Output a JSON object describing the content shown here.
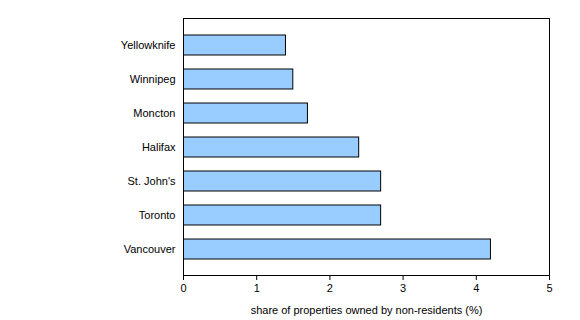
{
  "chart_data": {
    "type": "bar",
    "orientation": "horizontal",
    "categories": [
      "Yellowknife",
      "Winnipeg",
      "Moncton",
      "Halifax",
      "St. John's",
      "Toronto",
      "Vancouver"
    ],
    "values": [
      1.4,
      1.5,
      1.7,
      2.4,
      2.7,
      2.7,
      4.2
    ],
    "color": "#99ccff",
    "x_label": "share of properties owned by non-residents (%)",
    "xlim": [
      0,
      5
    ],
    "xticks": [
      0,
      1,
      2,
      3,
      4,
      5
    ],
    "grid": false
  }
}
